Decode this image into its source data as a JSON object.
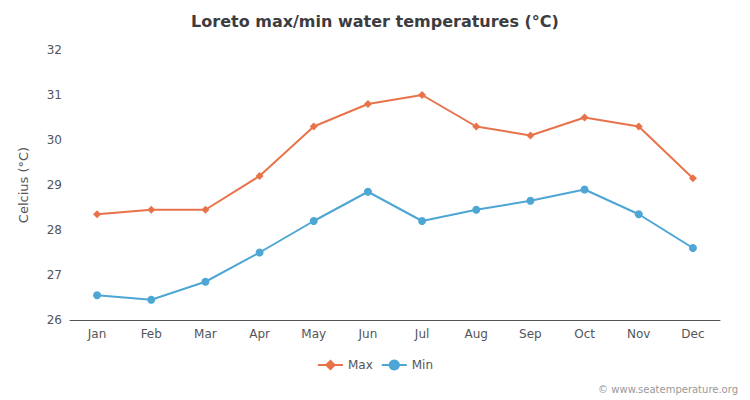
{
  "chart_data": {
    "type": "line",
    "title": "Loreto max/min water temperatures (°C)",
    "ylabel": "Celcius (°C)",
    "categories": [
      "Jan",
      "Feb",
      "Mar",
      "Apr",
      "May",
      "Jun",
      "Jul",
      "Aug",
      "Sep",
      "Oct",
      "Nov",
      "Dec"
    ],
    "series": [
      {
        "name": "Max",
        "color": "#e8734a",
        "marker": "diamond",
        "values": [
          28.35,
          28.45,
          28.45,
          29.2,
          30.3,
          30.8,
          31.0,
          30.3,
          30.1,
          30.5,
          30.3,
          29.15
        ]
      },
      {
        "name": "Min",
        "color": "#4da6d4",
        "marker": "circle",
        "values": [
          26.55,
          26.45,
          26.85,
          27.5,
          28.2,
          28.85,
          28.2,
          28.45,
          28.65,
          28.9,
          28.35,
          27.6
        ]
      }
    ],
    "ylim": [
      26,
      32
    ],
    "yticks": [
      26,
      27,
      28,
      29,
      30,
      31,
      32
    ],
    "grid": false,
    "legend": "bottom",
    "annotations": [
      {
        "text": "© www.seatemperature.org"
      }
    ]
  }
}
